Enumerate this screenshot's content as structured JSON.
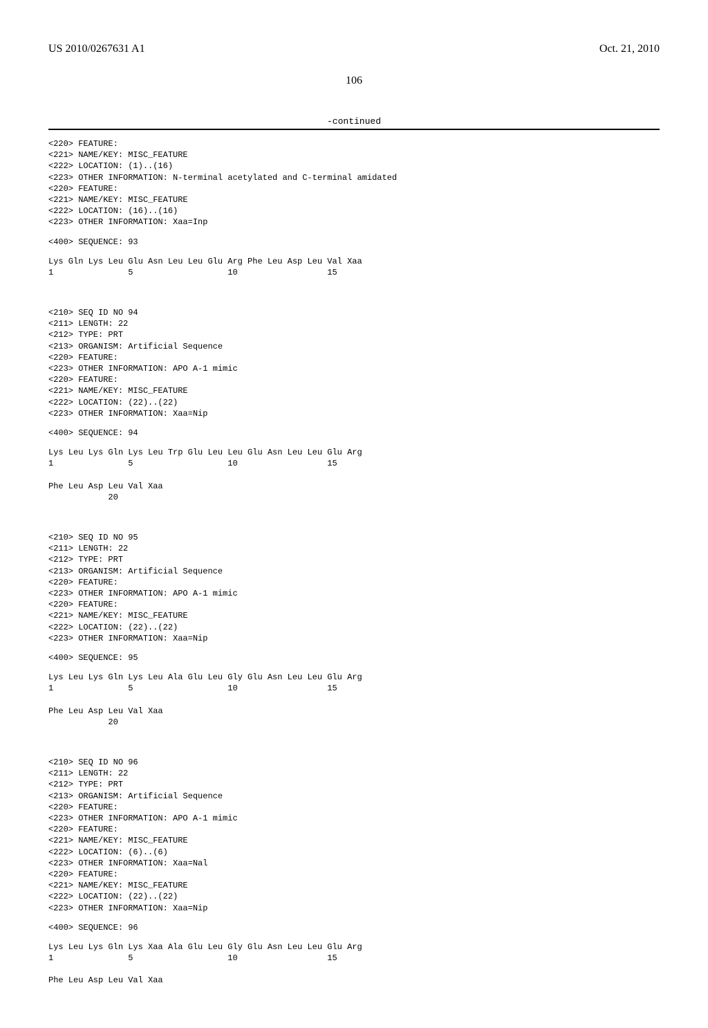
{
  "header": {
    "pub_number": "US 2010/0267631 A1",
    "pub_date": "Oct. 21, 2010"
  },
  "page_number": "106",
  "continued_label": "-continued",
  "sequences": [
    {
      "lines": [
        "<220> FEATURE:",
        "<221> NAME/KEY: MISC_FEATURE",
        "<222> LOCATION: (1)..(16)",
        "<223> OTHER INFORMATION: N-terminal acetylated and C-terminal amidated",
        "<220> FEATURE:",
        "<221> NAME/KEY: MISC_FEATURE",
        "<222> LOCATION: (16)..(16)",
        "<223> OTHER INFORMATION: Xaa=Inp"
      ],
      "seq_tag": "<400> SEQUENCE: 93",
      "seq_lines": [
        "Lys Gln Lys Leu Glu Asn Leu Leu Glu Arg Phe Leu Asp Leu Val Xaa",
        "1               5                   10                  15"
      ]
    },
    {
      "lines": [
        "<210> SEQ ID NO 94",
        "<211> LENGTH: 22",
        "<212> TYPE: PRT",
        "<213> ORGANISM: Artificial Sequence",
        "<220> FEATURE:",
        "<223> OTHER INFORMATION: APO A-1 mimic",
        "<220> FEATURE:",
        "<221> NAME/KEY: MISC_FEATURE",
        "<222> LOCATION: (22)..(22)",
        "<223> OTHER INFORMATION: Xaa=Nip"
      ],
      "seq_tag": "<400> SEQUENCE: 94",
      "seq_lines": [
        "Lys Leu Lys Gln Lys Leu Trp Glu Leu Leu Glu Asn Leu Leu Glu Arg",
        "1               5                   10                  15",
        "",
        "Phe Leu Asp Leu Val Xaa",
        "            20"
      ]
    },
    {
      "lines": [
        "<210> SEQ ID NO 95",
        "<211> LENGTH: 22",
        "<212> TYPE: PRT",
        "<213> ORGANISM: Artificial Sequence",
        "<220> FEATURE:",
        "<223> OTHER INFORMATION: APO A-1 mimic",
        "<220> FEATURE:",
        "<221> NAME/KEY: MISC_FEATURE",
        "<222> LOCATION: (22)..(22)",
        "<223> OTHER INFORMATION: Xaa=Nip"
      ],
      "seq_tag": "<400> SEQUENCE: 95",
      "seq_lines": [
        "Lys Leu Lys Gln Lys Leu Ala Glu Leu Gly Glu Asn Leu Leu Glu Arg",
        "1               5                   10                  15",
        "",
        "Phe Leu Asp Leu Val Xaa",
        "            20"
      ]
    },
    {
      "lines": [
        "<210> SEQ ID NO 96",
        "<211> LENGTH: 22",
        "<212> TYPE: PRT",
        "<213> ORGANISM: Artificial Sequence",
        "<220> FEATURE:",
        "<223> OTHER INFORMATION: APO A-1 mimic",
        "<220> FEATURE:",
        "<221> NAME/KEY: MISC_FEATURE",
        "<222> LOCATION: (6)..(6)",
        "<223> OTHER INFORMATION: Xaa=Nal",
        "<220> FEATURE:",
        "<221> NAME/KEY: MISC_FEATURE",
        "<222> LOCATION: (22)..(22)",
        "<223> OTHER INFORMATION: Xaa=Nip"
      ],
      "seq_tag": "<400> SEQUENCE: 96",
      "seq_lines": [
        "Lys Leu Lys Gln Lys Xaa Ala Glu Leu Gly Glu Asn Leu Leu Glu Arg",
        "1               5                   10                  15",
        "",
        "Phe Leu Asp Leu Val Xaa"
      ]
    }
  ]
}
